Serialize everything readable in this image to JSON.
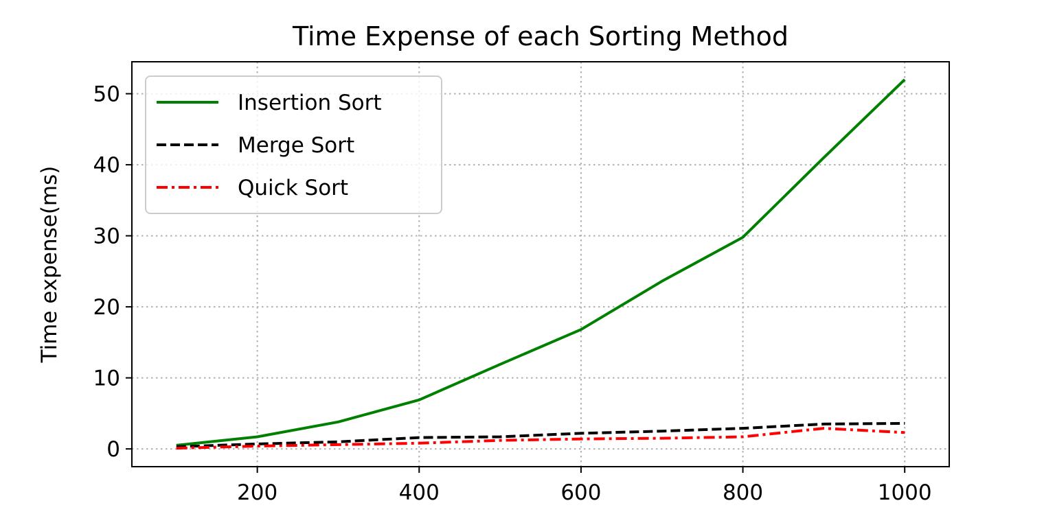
{
  "chart_data": {
    "type": "line",
    "title": "Time Expense of each Sorting Method",
    "xlabel": "",
    "ylabel": "Time expense(ms)",
    "x": [
      100,
      200,
      300,
      400,
      500,
      600,
      700,
      800,
      900,
      1000
    ],
    "xlim": [
      45,
      1055
    ],
    "ylim": [
      -2.5,
      54.5
    ],
    "xticks": [
      200,
      400,
      600,
      800,
      1000
    ],
    "yticks": [
      0,
      10,
      20,
      30,
      40,
      50
    ],
    "xtick_labels": [
      "200",
      "400",
      "600",
      "800",
      "1000"
    ],
    "ytick_labels": [
      "0",
      "10",
      "20",
      "30",
      "40",
      "50"
    ],
    "grid": true,
    "legend_position": "top-left",
    "series": [
      {
        "name": "Insertion Sort",
        "color": "#008000",
        "style": "solid",
        "values": [
          0.5,
          1.7,
          3.8,
          6.9,
          11.9,
          16.8,
          23.6,
          29.8,
          41.0,
          52.0
        ]
      },
      {
        "name": "Merge Sort",
        "color": "#000000",
        "style": "dashed",
        "values": [
          0.3,
          0.7,
          1.0,
          1.6,
          1.7,
          2.2,
          2.5,
          2.9,
          3.5,
          3.6
        ]
      },
      {
        "name": "Quick Sort",
        "color": "#ff0000",
        "style": "dashdot",
        "values": [
          0.1,
          0.4,
          0.6,
          0.8,
          1.2,
          1.4,
          1.5,
          1.7,
          2.9,
          2.3
        ]
      }
    ]
  }
}
